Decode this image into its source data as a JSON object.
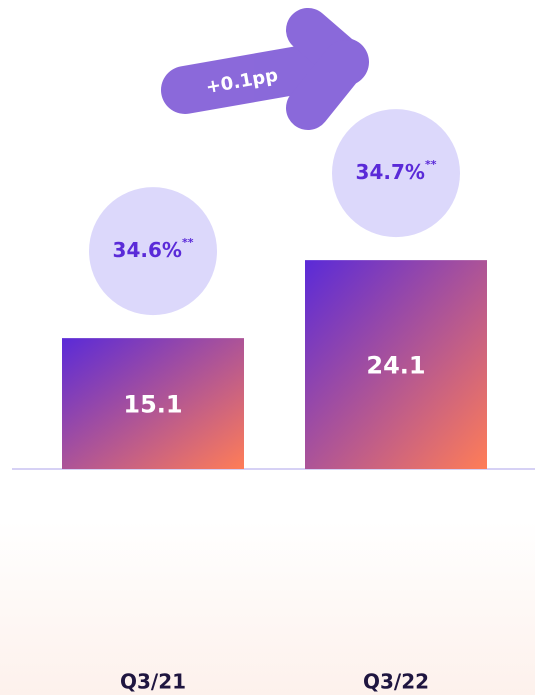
{
  "chart_data": {
    "type": "bar",
    "categories": [
      "Q3/21",
      "Q3/22"
    ],
    "values": [
      15.1,
      24.1
    ],
    "ylim": [
      0,
      30
    ],
    "colors": [
      "#5a2ad8",
      "#ff7d57"
    ],
    "margins": {
      "values": [
        34.6,
        34.7
      ],
      "value_labels": [
        "34.6%",
        "34.7%"
      ],
      "footnote_mark": "**",
      "color": "#dcd8fb"
    },
    "annotation": "+0.1pp"
  }
}
